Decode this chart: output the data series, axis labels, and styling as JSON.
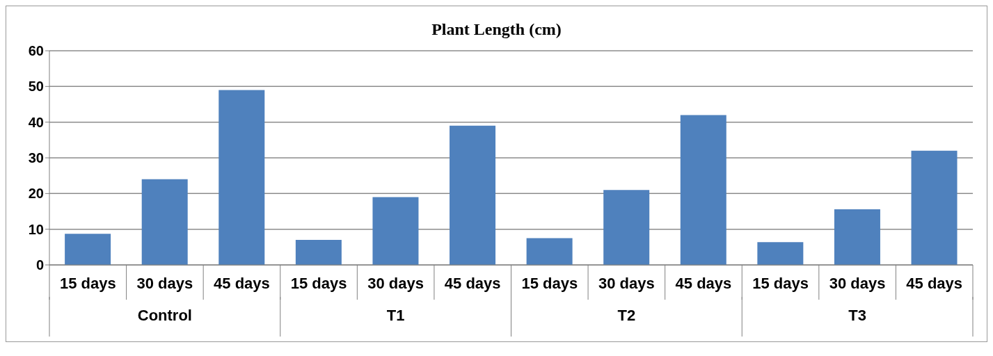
{
  "chart_data": {
    "type": "bar",
    "title": "Plant Length (cm)",
    "categories": [
      "15 days",
      "30 days",
      "45 days",
      "15 days",
      "30 days",
      "45 days",
      "15 days",
      "30 days",
      "45 days",
      "15 days",
      "30 days",
      "45 days"
    ],
    "values": [
      8.7,
      24,
      49,
      7,
      19,
      39,
      7.5,
      21,
      42,
      6.4,
      15.6,
      32
    ],
    "color": "#4f81bd",
    "annotations": [
      "Control",
      "T1",
      "T2",
      "T3"
    ],
    "ylim": [
      0,
      60
    ],
    "yticks": [
      0,
      10,
      20,
      30,
      40,
      50,
      60
    ],
    "grid": "y"
  }
}
